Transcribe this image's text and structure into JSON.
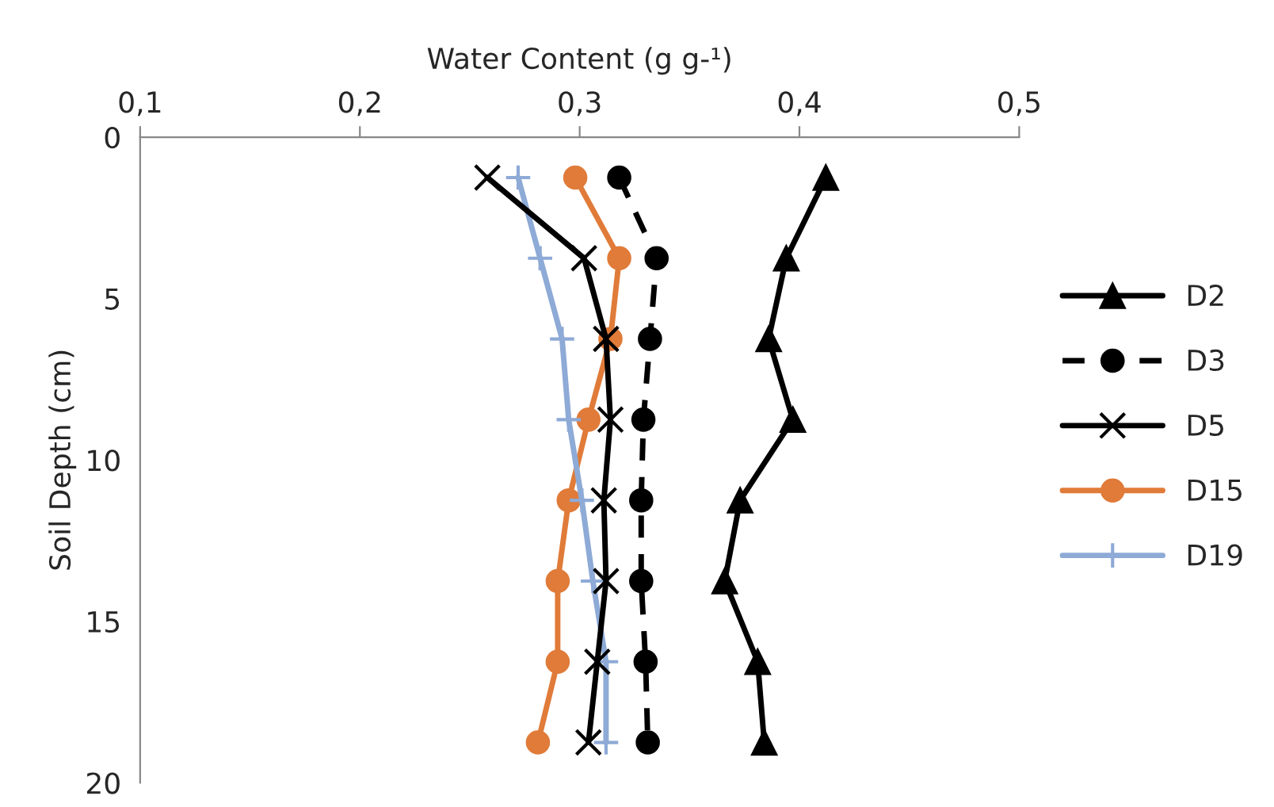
{
  "chart_data": {
    "type": "line",
    "xlabel": "Water Content (g g-¹)",
    "ylabel": "Soil Depth (cm)",
    "xlim": [
      0.1,
      0.5
    ],
    "xticks": [
      {
        "value": 0.1,
        "label": "0,1"
      },
      {
        "value": 0.2,
        "label": "0,2"
      },
      {
        "value": 0.3,
        "label": "0,3"
      },
      {
        "value": 0.4,
        "label": "0,4"
      },
      {
        "value": 0.5,
        "label": "0,5"
      }
    ],
    "ylim": [
      20,
      0
    ],
    "yticks": [
      0,
      5,
      10,
      15,
      20
    ],
    "grid": false,
    "legend": "right",
    "series": [
      {
        "name": "D2",
        "color": "#000000",
        "marker": "triangle",
        "line_style": "solid",
        "x": [
          0.412,
          0.394,
          0.386,
          0.397,
          0.373,
          0.366,
          0.381,
          0.384
        ],
        "values": [
          1.25,
          3.75,
          6.25,
          8.75,
          11.25,
          13.75,
          16.25,
          18.75
        ]
      },
      {
        "name": "D3",
        "color": "#000000",
        "marker": "circle",
        "line_style": "dashed",
        "x": [
          0.318,
          0.335,
          0.332,
          0.329,
          0.328,
          0.328,
          0.33,
          0.331
        ],
        "values": [
          1.25,
          3.75,
          6.25,
          8.75,
          11.25,
          13.75,
          16.25,
          18.75
        ]
      },
      {
        "name": "D5",
        "color": "#000000",
        "marker": "cross",
        "line_style": "solid",
        "x": [
          0.258,
          0.302,
          0.312,
          0.314,
          0.311,
          0.312,
          0.308,
          0.304
        ],
        "values": [
          1.25,
          3.75,
          6.25,
          8.75,
          11.25,
          13.75,
          16.25,
          18.75
        ]
      },
      {
        "name": "D15",
        "color": "#e07b39",
        "marker": "circle",
        "line_style": "solid",
        "x": [
          0.298,
          0.318,
          0.314,
          0.304,
          0.295,
          0.29,
          0.29,
          0.281
        ],
        "values": [
          1.25,
          3.75,
          6.25,
          8.75,
          11.25,
          13.75,
          16.25,
          18.75
        ]
      },
      {
        "name": "D19",
        "color": "#8eaad6",
        "marker": "plus",
        "line_style": "solid",
        "x": [
          0.272,
          0.282,
          0.292,
          0.295,
          0.301,
          0.306,
          0.312,
          0.312
        ],
        "values": [
          1.25,
          3.75,
          6.25,
          8.75,
          11.25,
          13.75,
          16.25,
          18.75
        ]
      }
    ]
  }
}
